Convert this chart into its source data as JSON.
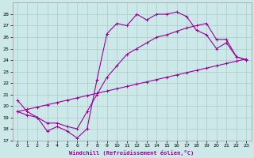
{
  "xlabel": "Windchill (Refroidissement éolien,°C)",
  "bg_color": "#cce8e8",
  "grid_color": "#aacccc",
  "line_color": "#990099",
  "xlim": [
    -0.5,
    23.5
  ],
  "ylim": [
    17,
    29
  ],
  "xticks": [
    0,
    1,
    2,
    3,
    4,
    5,
    6,
    7,
    8,
    9,
    10,
    11,
    12,
    13,
    14,
    15,
    16,
    17,
    18,
    19,
    20,
    21,
    22,
    23
  ],
  "yticks": [
    17,
    18,
    19,
    20,
    21,
    22,
    23,
    24,
    25,
    26,
    27,
    28
  ],
  "line1_x": [
    0,
    1,
    2,
    3,
    4,
    5,
    6,
    7,
    8,
    9,
    10,
    11,
    12,
    13,
    14,
    15,
    16,
    17,
    18,
    19,
    20,
    21,
    22,
    23
  ],
  "line1_y": [
    20.5,
    19.5,
    19.0,
    17.8,
    18.2,
    17.8,
    17.2,
    18.0,
    22.3,
    26.3,
    27.2,
    27.0,
    28.0,
    27.5,
    28.0,
    28.0,
    28.2,
    27.8,
    26.6,
    26.2,
    25.0,
    25.5,
    24.3,
    24.0
  ],
  "line2_x": [
    0,
    1,
    2,
    3,
    4,
    5,
    6,
    7,
    8,
    9,
    10,
    11,
    12,
    13,
    14,
    15,
    16,
    17,
    18,
    19,
    20,
    21,
    22,
    23
  ],
  "line2_y": [
    19.5,
    19.2,
    19.0,
    18.5,
    18.5,
    18.2,
    18.0,
    19.5,
    21.0,
    22.5,
    23.5,
    24.5,
    25.0,
    25.5,
    26.0,
    26.2,
    26.5,
    26.8,
    27.0,
    27.2,
    25.8,
    25.8,
    24.3,
    24.0
  ],
  "line3_x": [
    0,
    1,
    2,
    3,
    4,
    5,
    6,
    7,
    8,
    9,
    10,
    11,
    12,
    13,
    14,
    15,
    16,
    17,
    18,
    19,
    20,
    21,
    22,
    23
  ],
  "line3_y": [
    19.5,
    19.7,
    19.9,
    20.1,
    20.3,
    20.5,
    20.7,
    20.9,
    21.1,
    21.3,
    21.5,
    21.7,
    21.9,
    22.1,
    22.3,
    22.5,
    22.7,
    22.9,
    23.1,
    23.3,
    23.5,
    23.7,
    23.9,
    24.1
  ]
}
